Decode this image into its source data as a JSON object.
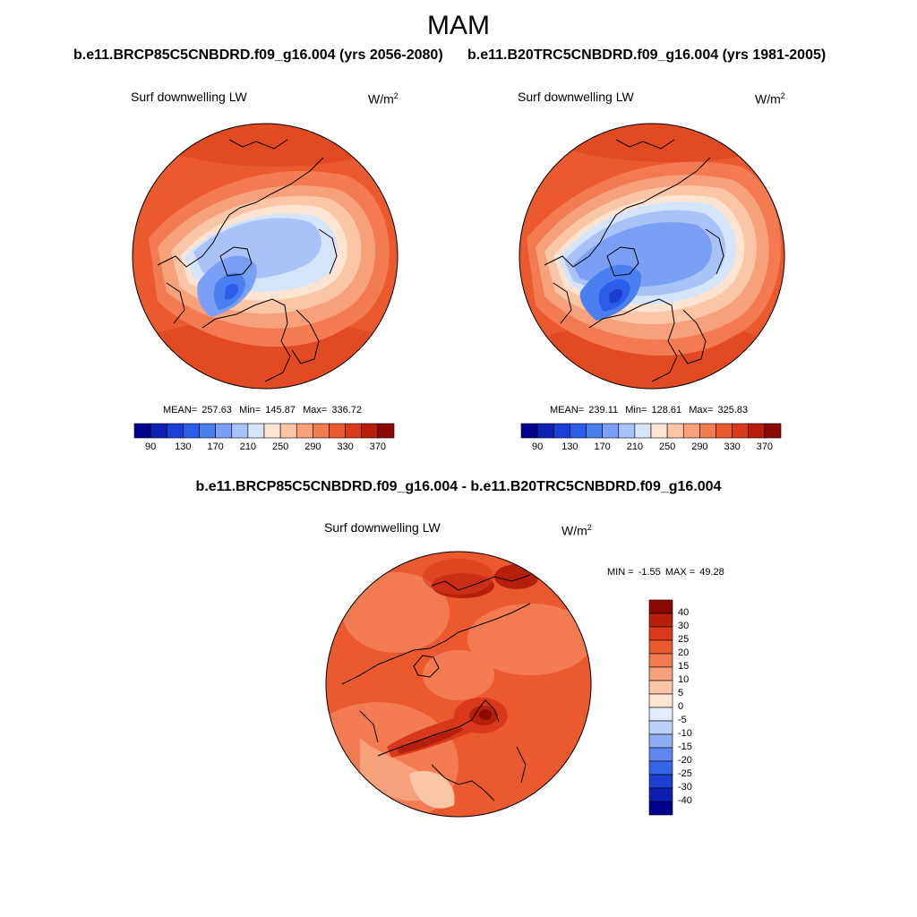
{
  "figure": {
    "season": "MAM",
    "case_titles": [
      "b.e11.BRCP85C5CNBDRD.f09_g16.004 (yrs 2056-2080)",
      "b.e11.B20TRC5CNBDRD.f09_g16.004 (yrs 1981-2005)"
    ],
    "diff_title": "b.e11.BRCP85C5CNBDRD.f09_g16.004 - b.e11.B20TRC5CNBDRD.f09_g16.004"
  },
  "panels": [
    {
      "variable": "Surf downwelling LW",
      "units_base": "W/m",
      "units_exp": "2",
      "mean_label": "MEAN=",
      "mean": "257.63",
      "min_label": "Min=",
      "min": "145.87",
      "max_label": "Max=",
      "max": "336.72"
    },
    {
      "variable": "Surf downwelling LW",
      "units_base": "W/m",
      "units_exp": "2",
      "mean_label": "MEAN=",
      "mean": "239.11",
      "min_label": "Min=",
      "min": "128.61",
      "max_label": "Max=",
      "max": "325.83"
    }
  ],
  "diff_panel": {
    "variable": "Surf downwelling LW",
    "units_base": "W/m",
    "units_exp": "2",
    "min_label": "MIN =",
    "min": "-1.55",
    "max_label": "MAX =",
    "max": "49.28"
  },
  "legend": {
    "tick_labels": [
      "90",
      "130",
      "170",
      "210",
      "250",
      "290",
      "330",
      "370"
    ],
    "colors": [
      "#00008c",
      "#0b1fb0",
      "#1b3fd2",
      "#2b5ee8",
      "#4a7ff0",
      "#7aa0f5",
      "#a9c2f7",
      "#d6e4fa",
      "#fde4d0",
      "#fbc6a6",
      "#f7a17a",
      "#f27b52",
      "#ea5a2e",
      "#d9391a",
      "#b51f0c",
      "#8a0a02"
    ]
  },
  "diff_legend": {
    "labels": [
      "40",
      "30",
      "25",
      "20",
      "15",
      "10",
      "5",
      "0",
      "-5",
      "-10",
      "-15",
      "-20",
      "-25",
      "-30",
      "-40"
    ],
    "colors": [
      "#8a0a02",
      "#b51f0c",
      "#d9391a",
      "#ea5a2e",
      "#f27b52",
      "#f7a17a",
      "#fbc6a6",
      "#fde4d0",
      "#e3ecfb",
      "#bcd0f8",
      "#8eacf4",
      "#5e86ee",
      "#3564e6",
      "#1c40d0",
      "#0b1fb0",
      "#00008c"
    ]
  }
}
